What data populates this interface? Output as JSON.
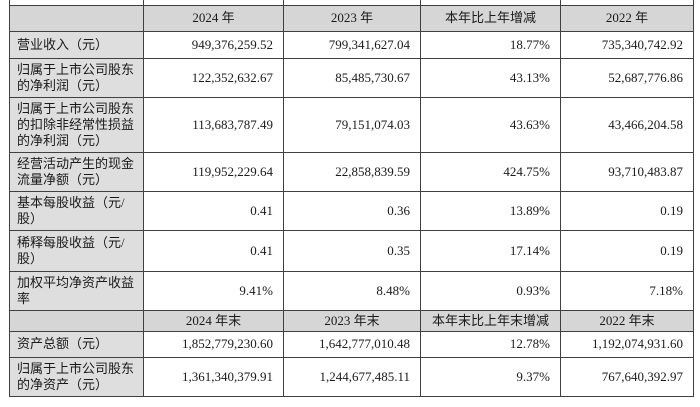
{
  "colors": {
    "header_bg": "#d6d6d6",
    "label_bg": "#dedede",
    "border": "#404040",
    "cell_bg": "#ffffff",
    "text": "#1a1a1a"
  },
  "table": {
    "sections": [
      {
        "headers": [
          "",
          "2024 年",
          "2023 年",
          "本年比上年增减",
          "2022 年"
        ],
        "rows": [
          {
            "label": "营业收入（元）",
            "values": [
              "949,376,259.52",
              "799,341,627.04",
              "18.77%",
              "735,340,742.92"
            ]
          },
          {
            "label": "归属于上市公司股东的净利润（元）",
            "values": [
              "122,352,632.67",
              "85,485,730.67",
              "43.13%",
              "52,687,776.86"
            ]
          },
          {
            "label": "归属于上市公司股东的扣除非经常性损益的净利润（元）",
            "values": [
              "113,683,787.49",
              "79,151,074.03",
              "43.63%",
              "43,466,204.58"
            ]
          },
          {
            "label": "经营活动产生的现金流量净额（元）",
            "values": [
              "119,952,229.64",
              "22,858,839.59",
              "424.75%",
              "93,710,483.87"
            ]
          },
          {
            "label": "基本每股收益（元/股）",
            "values": [
              "0.41",
              "0.36",
              "13.89%",
              "0.19"
            ]
          },
          {
            "label": "稀释每股收益（元/股）",
            "values": [
              "0.41",
              "0.35",
              "17.14%",
              "0.19"
            ]
          },
          {
            "label": "加权平均净资产收益率",
            "values": [
              "9.41%",
              "8.48%",
              "0.93%",
              "7.18%"
            ]
          }
        ]
      },
      {
        "headers": [
          "",
          "2024 年末",
          "2023 年末",
          "本年末比上年末增减",
          "2022 年末"
        ],
        "rows": [
          {
            "label": "资产总额（元）",
            "values": [
              "1,852,779,230.60",
              "1,642,777,010.48",
              "12.78%",
              "1,192,074,931.60"
            ]
          },
          {
            "label": "归属于上市公司股东的净资产（元）",
            "values": [
              "1,361,340,379.91",
              "1,244,677,485.11",
              "9.37%",
              "767,640,392.97"
            ]
          }
        ]
      }
    ]
  }
}
